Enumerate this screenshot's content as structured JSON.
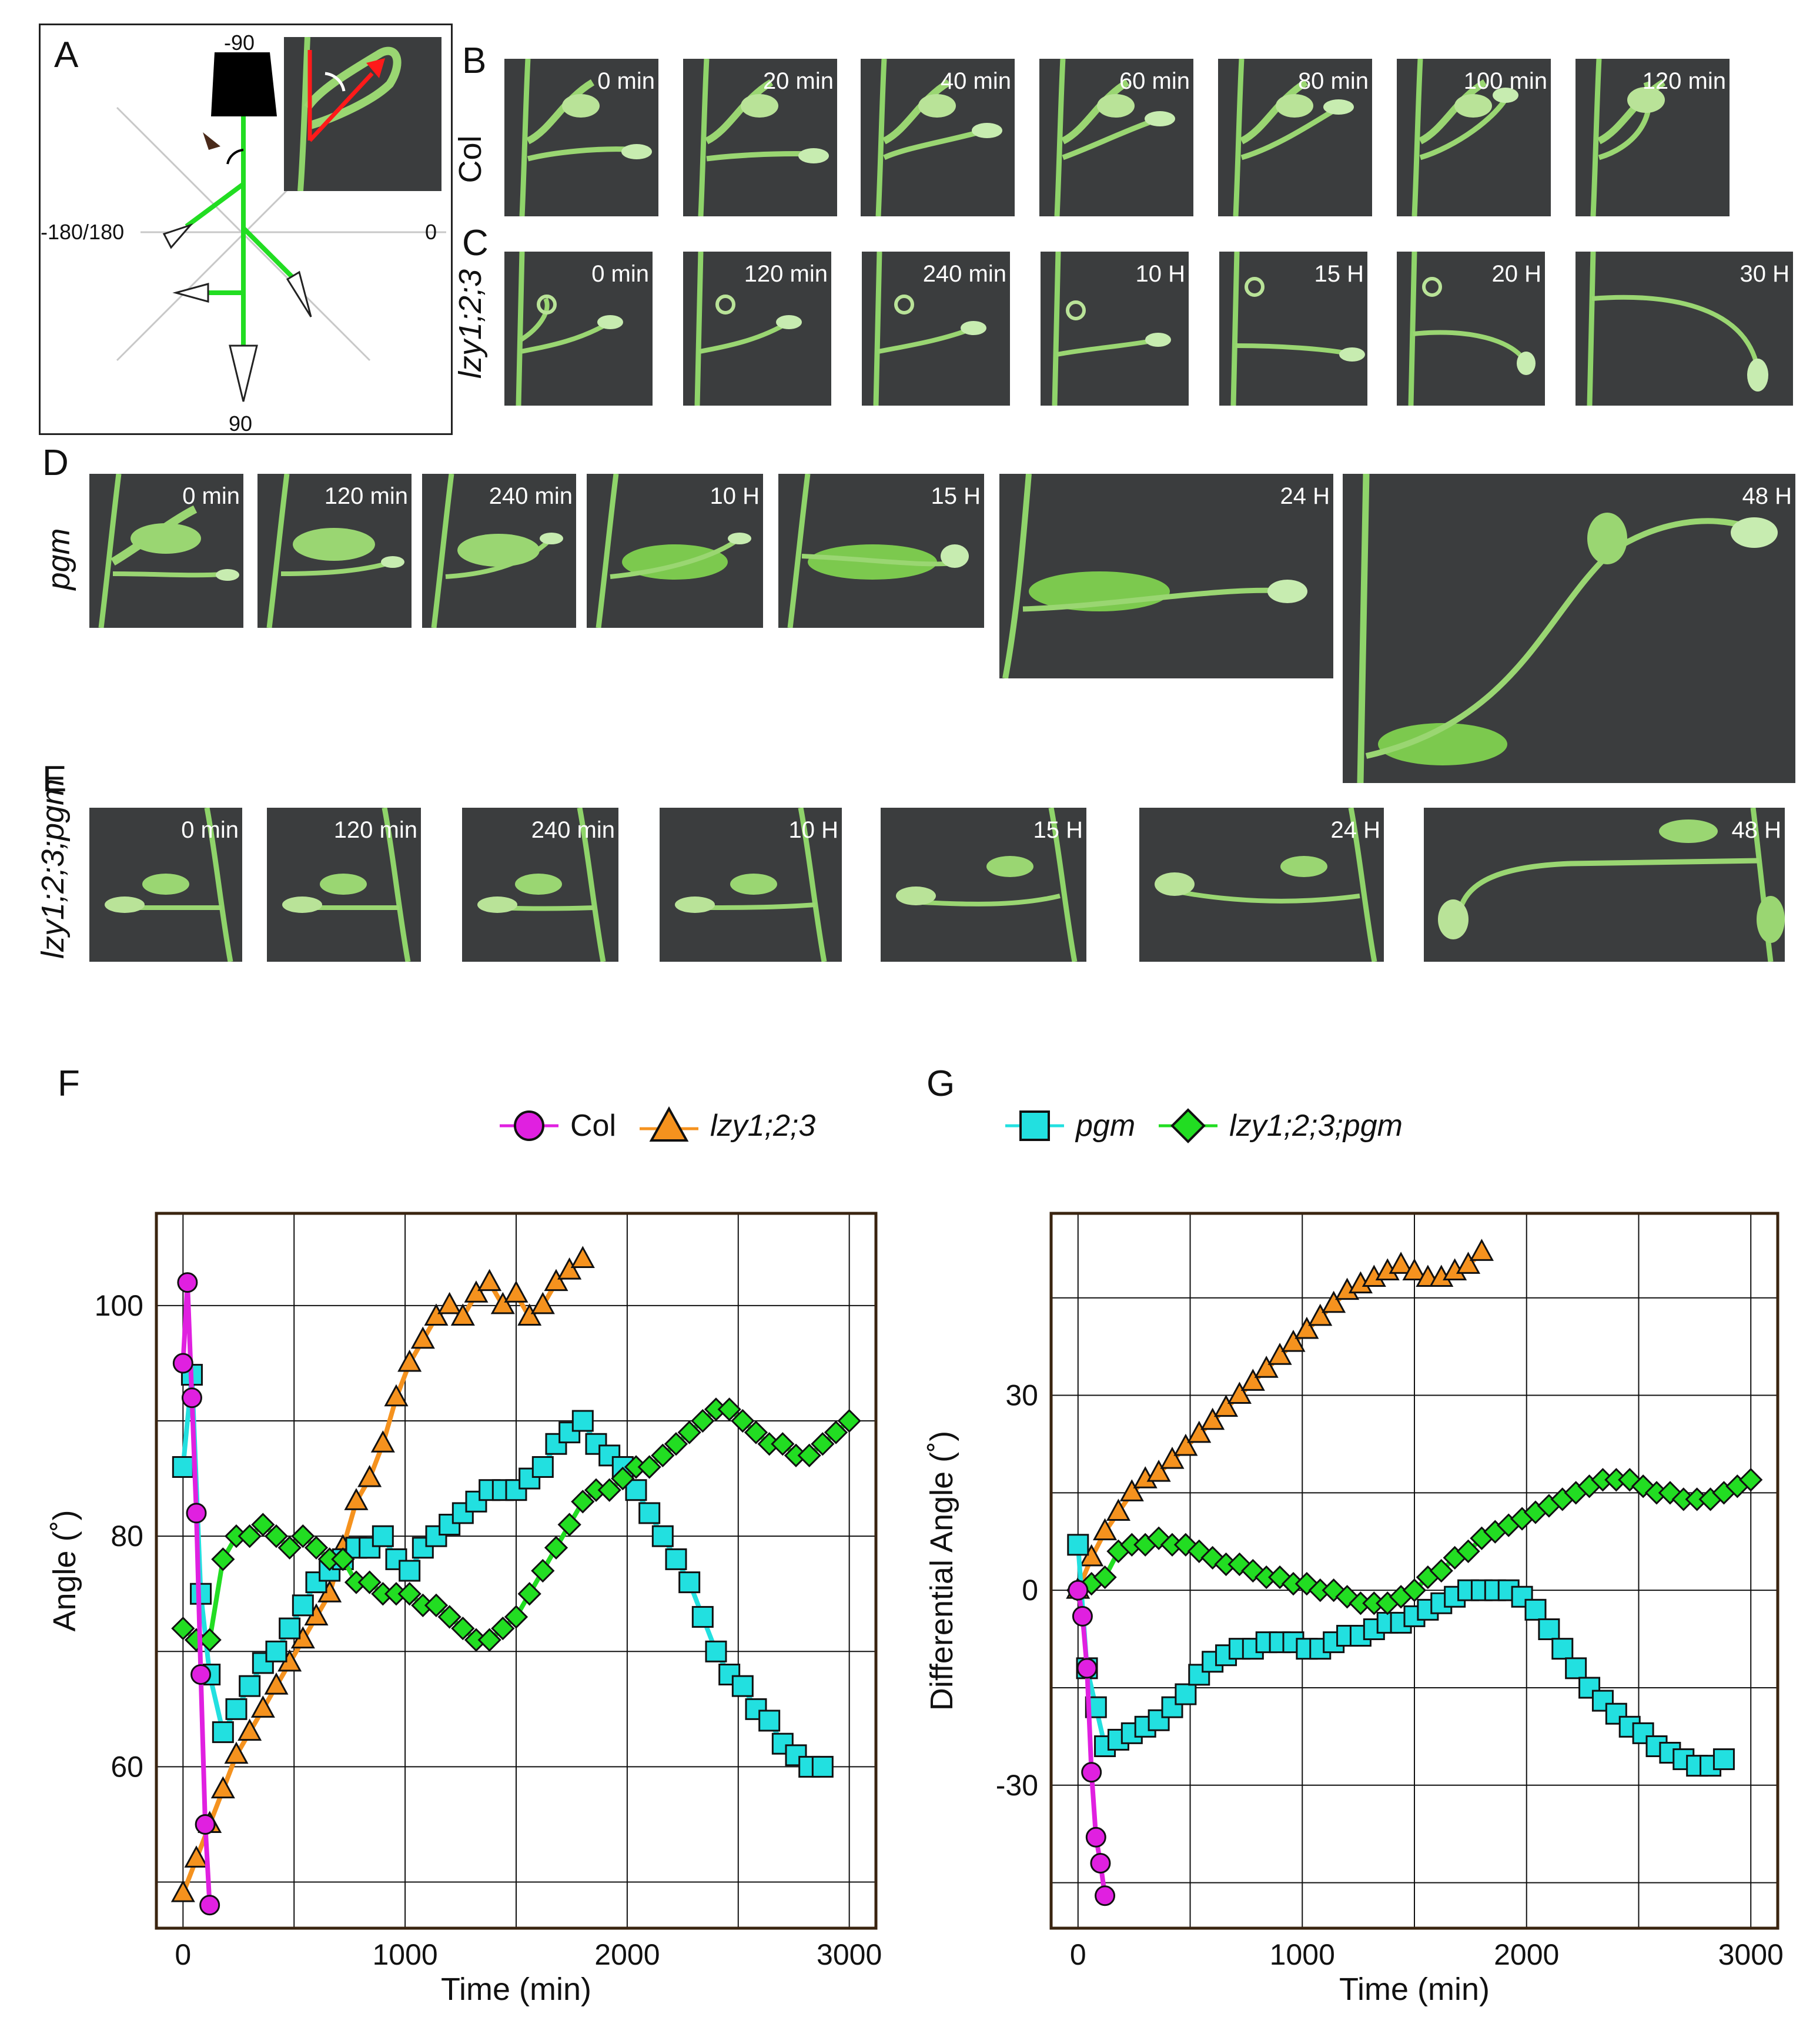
{
  "panels": {
    "a": "A",
    "b": "B",
    "c": "C",
    "d": "D",
    "e": "E",
    "f": "F",
    "g": "G"
  },
  "panel_a": {
    "top_label": "-90",
    "left_label": "-180/180",
    "right_label": "0",
    "bottom_label": "90"
  },
  "rows": {
    "col": {
      "label": "Col",
      "frames": [
        "0 min",
        "20 min",
        "40 min",
        "60 min",
        "80 min",
        "100 min",
        "120 min"
      ]
    },
    "lzy": {
      "label": "lzy1;2;3",
      "frames": [
        "0 min",
        "120 min",
        "240 min",
        "10 H",
        "15 H",
        "20 H",
        "30 H"
      ]
    },
    "pgm": {
      "label": "pgm",
      "frames": [
        "0 min",
        "120 min",
        "240 min",
        "10 H",
        "15 H",
        "24 H",
        "48 H"
      ]
    },
    "lzypgm": {
      "label": "lzy1;2;3;pgm",
      "frames": [
        "0 min",
        "120 min",
        "240 min",
        "10 H",
        "15 H",
        "24 H",
        "48 H"
      ]
    }
  },
  "legend": {
    "col": "Col",
    "lzy": "lzy1;2;3",
    "pgm": "pgm",
    "lzypgm": "lzy1;2;3;pgm"
  },
  "colors": {
    "col": "#e020e0",
    "lzy": "#f5921e",
    "pgm": "#22e0e0",
    "lzypgm": "#22dd22"
  },
  "chart_data": [
    {
      "type": "line",
      "panel": "F",
      "title": "",
      "xlabel": "Time (min)",
      "ylabel": "Angle (˚)",
      "xlim": [
        -120,
        3120
      ],
      "ylim": [
        46,
        108
      ],
      "xticks": [
        0,
        1000,
        2000,
        3000
      ],
      "yticks": [
        60,
        80,
        100
      ],
      "grid": true,
      "series": [
        {
          "name": "Col",
          "key": "col",
          "x": [
            0,
            20,
            40,
            60,
            80,
            100,
            120
          ],
          "y": [
            95,
            102,
            92,
            82,
            68,
            55,
            48
          ]
        },
        {
          "name": "lzy1;2;3",
          "key": "lzy",
          "x": [
            0,
            60,
            120,
            180,
            240,
            300,
            360,
            420,
            480,
            540,
            600,
            660,
            720,
            780,
            840,
            900,
            960,
            1020,
            1080,
            1140,
            1200,
            1260,
            1320,
            1380,
            1440,
            1500,
            1560,
            1620,
            1680,
            1740,
            1800
          ],
          "y": [
            49,
            52,
            55,
            58,
            61,
            63,
            65,
            67,
            69,
            71,
            73,
            75,
            79,
            83,
            85,
            88,
            92,
            95,
            97,
            99,
            100,
            99,
            101,
            102,
            100,
            101,
            99,
            100,
            102,
            103,
            104
          ]
        },
        {
          "name": "pgm",
          "key": "pgm",
          "x": [
            0,
            40,
            80,
            120,
            180,
            240,
            300,
            360,
            420,
            480,
            540,
            600,
            660,
            720,
            780,
            840,
            900,
            960,
            1020,
            1080,
            1140,
            1200,
            1260,
            1320,
            1380,
            1440,
            1500,
            1560,
            1620,
            1680,
            1740,
            1800,
            1860,
            1920,
            1980,
            2040,
            2100,
            2160,
            2220,
            2280,
            2340,
            2400,
            2460,
            2520,
            2580,
            2640,
            2700,
            2760,
            2820,
            2880
          ],
          "y": [
            86,
            94,
            75,
            68,
            63,
            65,
            67,
            69,
            70,
            72,
            74,
            76,
            77,
            78,
            79,
            79,
            80,
            78,
            77,
            79,
            80,
            81,
            82,
            83,
            84,
            84,
            84,
            85,
            86,
            88,
            89,
            90,
            88,
            87,
            86,
            84,
            82,
            80,
            78,
            76,
            73,
            70,
            68,
            67,
            65,
            64,
            62,
            61,
            60,
            60
          ]
        },
        {
          "name": "lzy1;2;3;pgm",
          "key": "lzypgm",
          "x": [
            0,
            60,
            120,
            180,
            240,
            300,
            360,
            420,
            480,
            540,
            600,
            660,
            720,
            780,
            840,
            900,
            960,
            1020,
            1080,
            1140,
            1200,
            1260,
            1320,
            1380,
            1440,
            1500,
            1560,
            1620,
            1680,
            1740,
            1800,
            1860,
            1920,
            1980,
            2040,
            2100,
            2160,
            2220,
            2280,
            2340,
            2400,
            2460,
            2520,
            2580,
            2640,
            2700,
            2760,
            2820,
            2880,
            2940,
            3000
          ],
          "y": [
            72,
            71,
            71,
            78,
            80,
            80,
            81,
            80,
            79,
            80,
            79,
            78,
            78,
            76,
            76,
            75,
            75,
            75,
            74,
            74,
            73,
            72,
            71,
            71,
            72,
            73,
            75,
            77,
            79,
            81,
            83,
            84,
            84,
            85,
            86,
            86,
            87,
            88,
            89,
            90,
            91,
            91,
            90,
            89,
            88,
            88,
            87,
            87,
            88,
            89,
            90
          ]
        }
      ]
    },
    {
      "type": "line",
      "panel": "G",
      "title": "",
      "xlabel": "Time (min)",
      "ylabel": "Differential Angle (˚)",
      "xlim": [
        -120,
        3120
      ],
      "ylim": [
        -52,
        58
      ],
      "xticks": [
        0,
        1000,
        2000,
        3000
      ],
      "yticks": [
        -30,
        0,
        30
      ],
      "grid": true,
      "series": [
        {
          "name": "Col",
          "key": "col",
          "x": [
            0,
            20,
            40,
            60,
            80,
            100,
            120
          ],
          "y": [
            0,
            -4,
            -12,
            -28,
            -38,
            -42,
            -47
          ]
        },
        {
          "name": "lzy1;2;3",
          "key": "lzy",
          "x": [
            0,
            60,
            120,
            180,
            240,
            300,
            360,
            420,
            480,
            540,
            600,
            660,
            720,
            780,
            840,
            900,
            960,
            1020,
            1080,
            1140,
            1200,
            1260,
            1320,
            1380,
            1440,
            1500,
            1560,
            1620,
            1680,
            1740,
            1800
          ],
          "y": [
            0,
            5,
            9,
            12,
            15,
            17,
            18,
            20,
            22,
            24,
            26,
            28,
            30,
            32,
            34,
            36,
            38,
            40,
            42,
            44,
            46,
            47,
            48,
            49,
            50,
            49,
            48,
            48,
            49,
            50,
            52
          ]
        },
        {
          "name": "pgm",
          "key": "pgm",
          "x": [
            0,
            40,
            80,
            120,
            180,
            240,
            300,
            360,
            420,
            480,
            540,
            600,
            660,
            720,
            780,
            840,
            900,
            960,
            1020,
            1080,
            1140,
            1200,
            1260,
            1320,
            1380,
            1440,
            1500,
            1560,
            1620,
            1680,
            1740,
            1800,
            1860,
            1920,
            1980,
            2040,
            2100,
            2160,
            2220,
            2280,
            2340,
            2400,
            2460,
            2520,
            2580,
            2640,
            2700,
            2760,
            2820,
            2880
          ],
          "y": [
            7,
            -12,
            -18,
            -24,
            -23,
            -22,
            -21,
            -20,
            -18,
            -16,
            -13,
            -11,
            -10,
            -9,
            -9,
            -8,
            -8,
            -8,
            -9,
            -9,
            -8,
            -7,
            -7,
            -6,
            -5,
            -5,
            -4,
            -3,
            -2,
            -1,
            0,
            0,
            0,
            0,
            -1,
            -3,
            -6,
            -9,
            -12,
            -15,
            -17,
            -19,
            -21,
            -22,
            -24,
            -25,
            -26,
            -27,
            -27,
            -26
          ]
        },
        {
          "name": "lzy1;2;3;pgm",
          "key": "lzypgm",
          "x": [
            0,
            60,
            120,
            180,
            240,
            300,
            360,
            420,
            480,
            540,
            600,
            660,
            720,
            780,
            840,
            900,
            960,
            1020,
            1080,
            1140,
            1200,
            1260,
            1320,
            1380,
            1440,
            1500,
            1560,
            1620,
            1680,
            1740,
            1800,
            1860,
            1920,
            1980,
            2040,
            2100,
            2160,
            2220,
            2280,
            2340,
            2400,
            2460,
            2520,
            2580,
            2640,
            2700,
            2760,
            2820,
            2880,
            2940,
            3000
          ],
          "y": [
            0,
            1,
            2,
            6,
            7,
            7,
            8,
            7,
            7,
            6,
            5,
            4,
            4,
            3,
            2,
            2,
            1,
            1,
            0,
            0,
            -1,
            -2,
            -2,
            -2,
            -1,
            0,
            2,
            3,
            5,
            6,
            8,
            9,
            10,
            11,
            12,
            13,
            14,
            15,
            16,
            17,
            17,
            17,
            16,
            15,
            15,
            14,
            14,
            14,
            15,
            16,
            17
          ]
        }
      ]
    }
  ]
}
